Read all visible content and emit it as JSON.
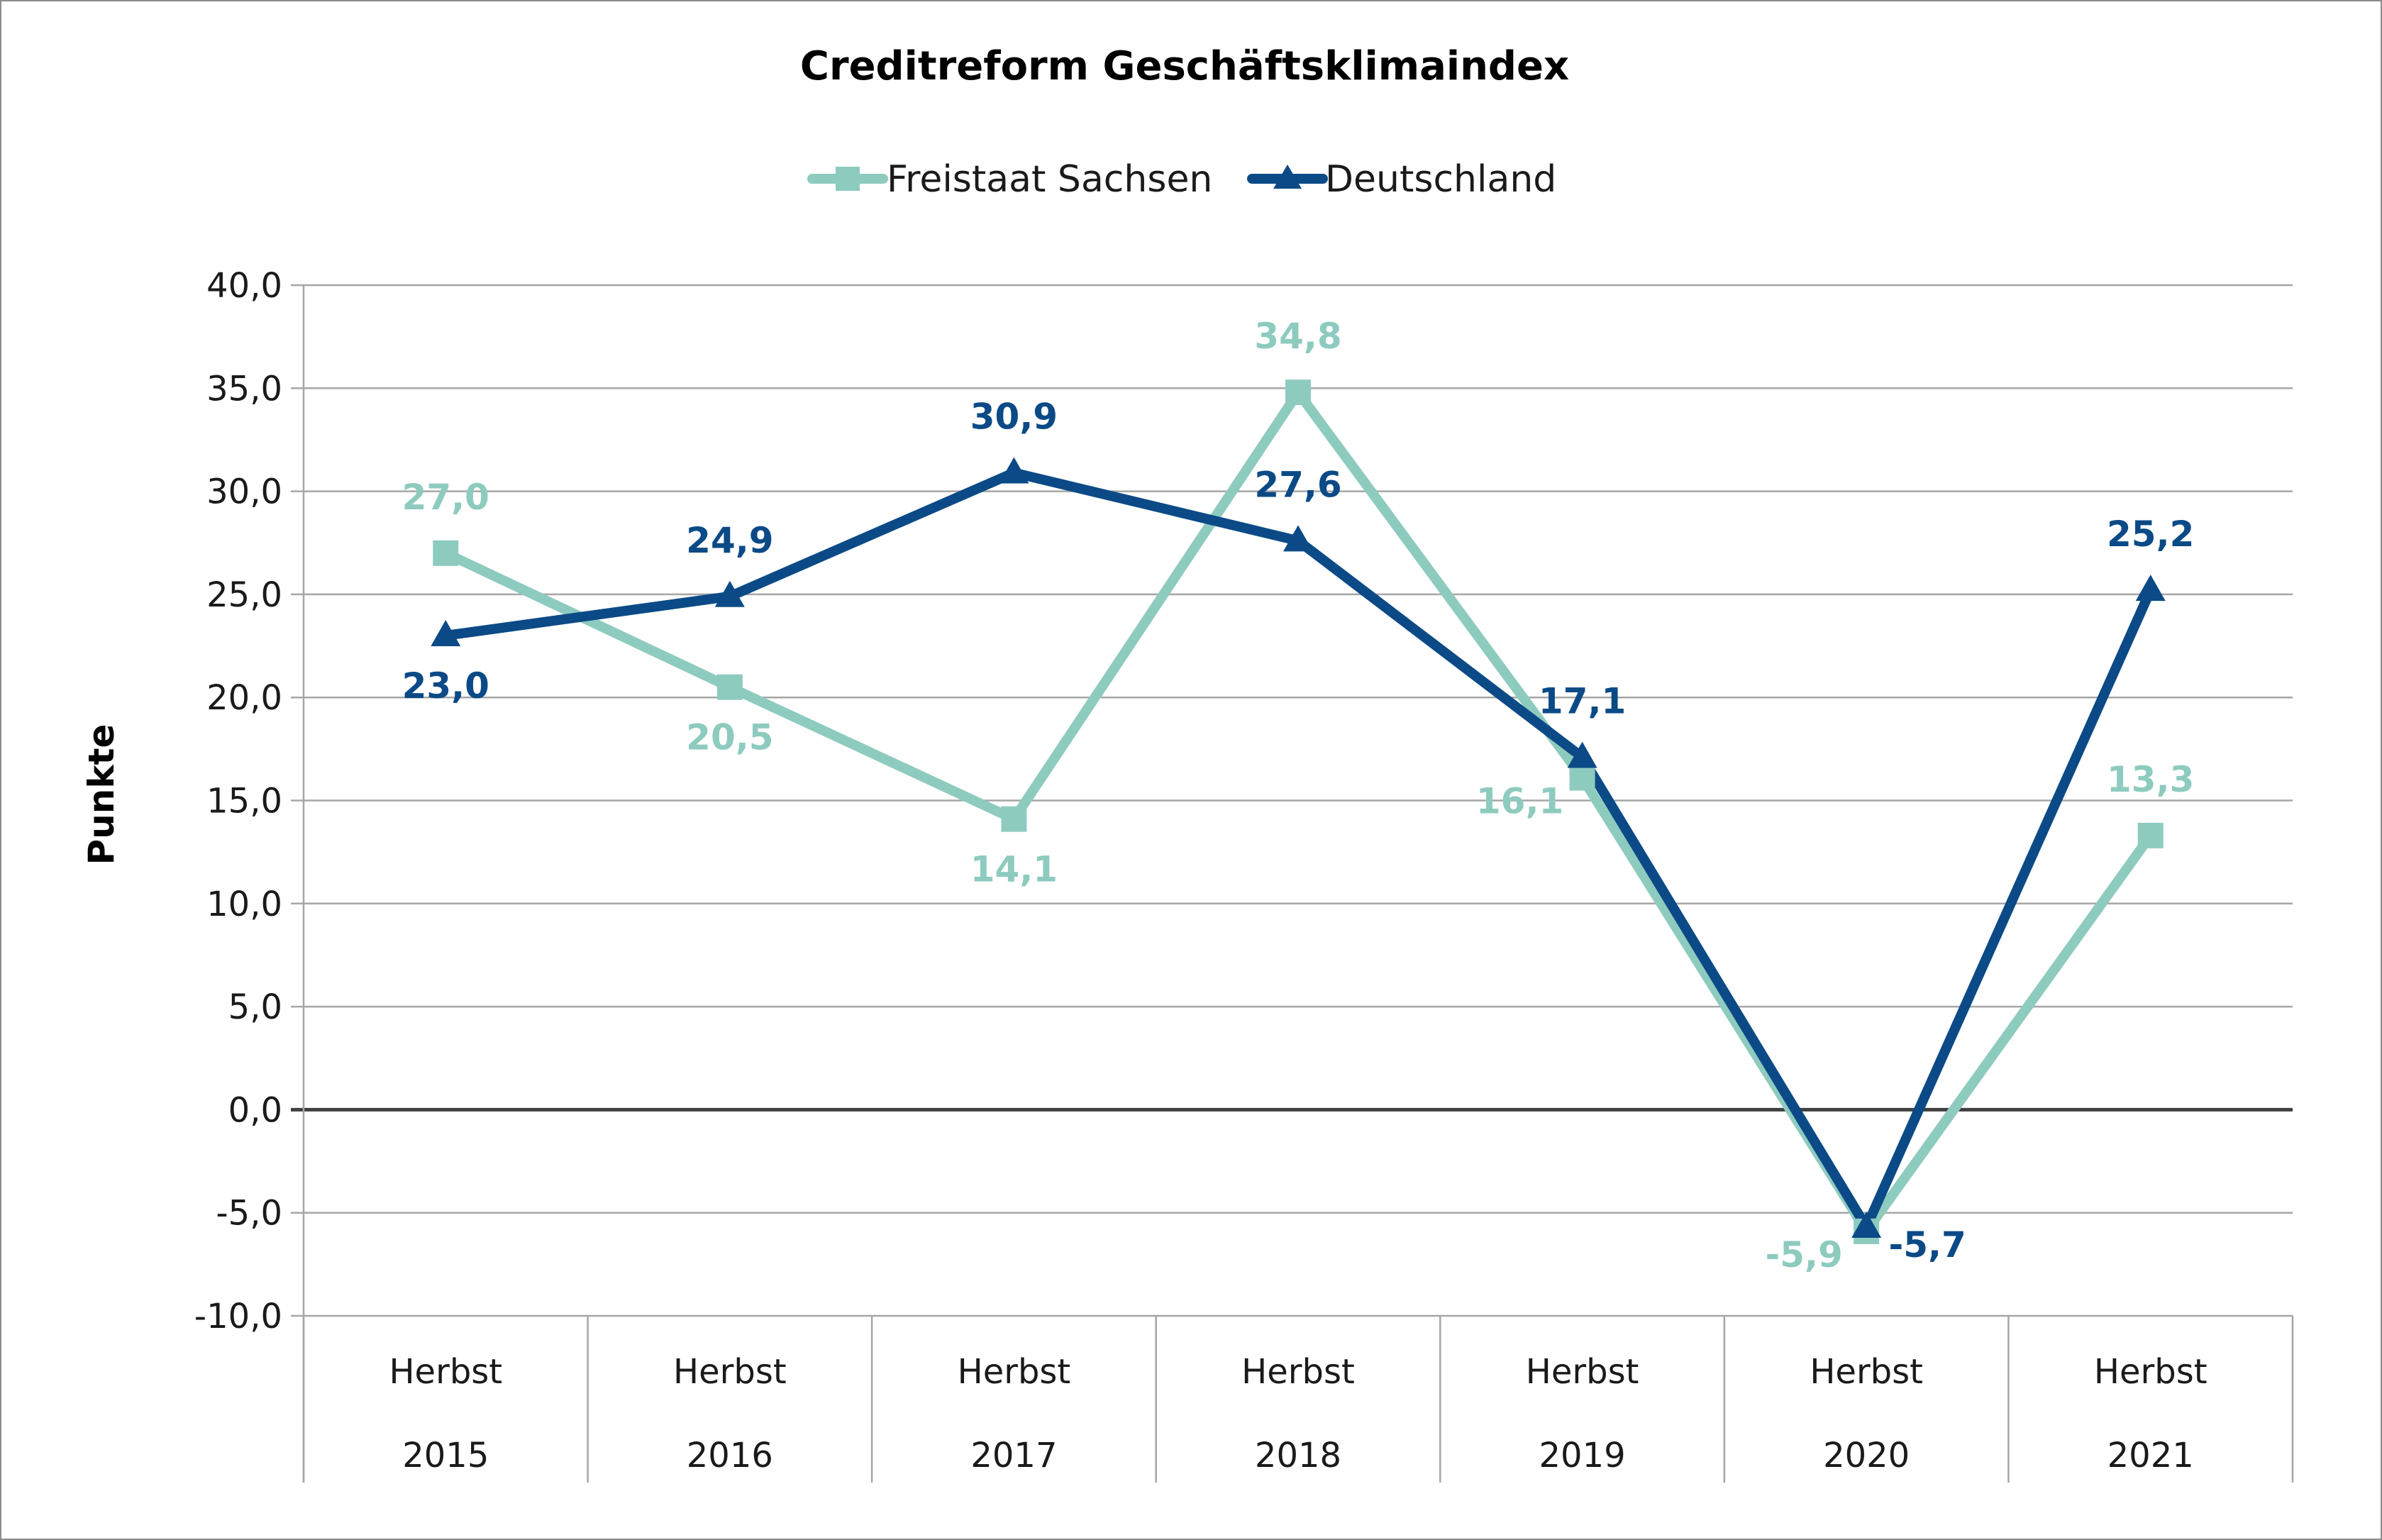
{
  "chart_data": {
    "type": "line",
    "title": "Creditreform Geschäftsklimaindex",
    "ylabel": "Punkte",
    "xlabel": "",
    "ylim": [
      -10,
      40
    ],
    "ytick_step": 5,
    "ytick_labels": [
      "-10,0",
      "-5,0",
      "0,0",
      "5,0",
      "10,0",
      "15,0",
      "20,0",
      "25,0",
      "30,0",
      "35,0",
      "40,0"
    ],
    "grid": true,
    "legend_position": "top-center",
    "categories": [
      {
        "line1": "Herbst",
        "line2": "2015"
      },
      {
        "line1": "Herbst",
        "line2": "2016"
      },
      {
        "line1": "Herbst",
        "line2": "2017"
      },
      {
        "line1": "Herbst",
        "line2": "2018"
      },
      {
        "line1": "Herbst",
        "line2": "2019"
      },
      {
        "line1": "Herbst",
        "line2": "2020"
      },
      {
        "line1": "Herbst",
        "line2": "2021"
      }
    ],
    "series": [
      {
        "name": "Freistaat Sachsen",
        "color": "#8ecbbf",
        "marker": "square",
        "values": [
          27.0,
          20.5,
          14.1,
          34.8,
          16.1,
          -5.9,
          13.3
        ],
        "labels": [
          "27,0",
          "20,5",
          "14,1",
          "34,8",
          "16,1",
          "-5,9",
          "13,3"
        ],
        "label_positions": [
          "above",
          "below",
          "below",
          "above",
          "left",
          "left",
          "above"
        ]
      },
      {
        "name": "Deutschland",
        "color": "#0b4a86",
        "marker": "triangle",
        "values": [
          23.0,
          24.9,
          30.9,
          27.6,
          17.1,
          -5.7,
          25.2
        ],
        "labels": [
          "23,0",
          "24,9",
          "30,9",
          "27,6",
          "17,1",
          "-5,7",
          "25,2"
        ],
        "label_positions": [
          "below",
          "above",
          "above",
          "above",
          "above",
          "right",
          "above"
        ]
      }
    ]
  }
}
